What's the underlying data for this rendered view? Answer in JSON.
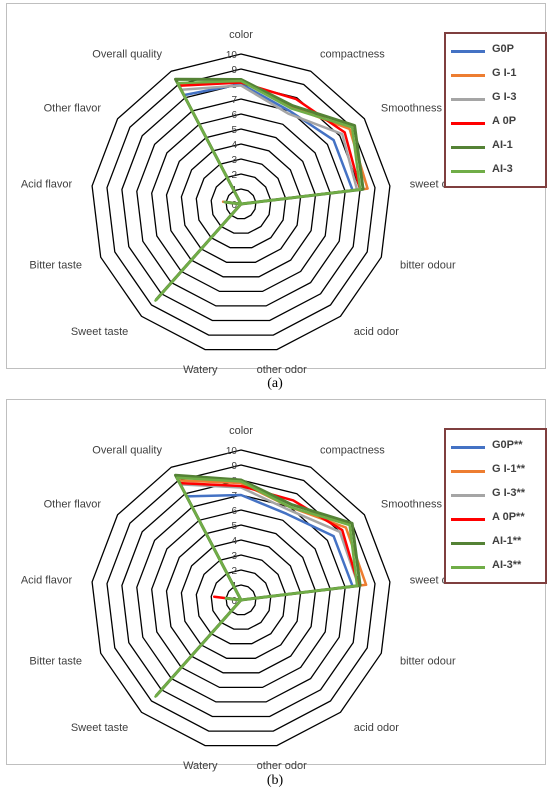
{
  "chart_data": [
    {
      "type": "radar",
      "panel_label": "(a)",
      "categories": [
        "color",
        "compactness",
        "Smoothness",
        "sweet odor",
        "bitter odour",
        "acid odor",
        "other odor",
        "Watery",
        "Sweet taste",
        "Bitter taste",
        "Acid flavor",
        "Other flavor",
        "Overall quality"
      ],
      "ticks": [
        "0",
        "1",
        "2",
        "3",
        "4",
        "5",
        "6",
        "7",
        "8",
        "9",
        "10"
      ],
      "rlim": [
        0,
        10
      ],
      "legend_position": "right",
      "series": [
        {
          "name": "G0P",
          "color": "#4472c4",
          "values": [
            8.0,
            7.0,
            7.5,
            7.5,
            0,
            0,
            0,
            0,
            8.2,
            0,
            1.0,
            0,
            8.2
          ]
        },
        {
          "name": "G I-1",
          "color": "#ed7d31",
          "values": [
            8.2,
            7.3,
            8.8,
            8.5,
            0,
            0,
            0,
            0,
            8.4,
            0,
            1.2,
            0,
            9.0
          ]
        },
        {
          "name": "G I-3",
          "color": "#a5a5a5",
          "values": [
            7.9,
            6.8,
            8.2,
            7.8,
            0,
            0,
            0,
            0,
            8.3,
            0,
            1.1,
            0,
            8.6
          ]
        },
        {
          "name": "A 0P",
          "color": "#ff0000",
          "values": [
            8.1,
            7.9,
            8.4,
            8.0,
            0,
            0,
            0,
            0,
            8.3,
            0,
            1.0,
            0,
            8.9
          ]
        },
        {
          "name": "AI-1",
          "color": "#548235",
          "values": [
            8.3,
            7.4,
            9.2,
            8.2,
            0,
            0,
            0,
            0,
            8.5,
            0,
            1.0,
            0,
            9.4
          ]
        },
        {
          "name": "AI-3",
          "color": "#70ad47",
          "values": [
            8.2,
            7.2,
            9.0,
            8.0,
            0,
            0,
            0,
            0,
            8.6,
            0,
            1.1,
            0,
            9.1
          ]
        }
      ]
    },
    {
      "type": "radar",
      "panel_label": "(b)",
      "categories": [
        "color",
        "compactness",
        "Smoothness",
        "sweet odor",
        "bitter odour",
        "acid odor",
        "other odor",
        "Watery",
        "Sweet taste",
        "Bitter taste",
        "Acid flavor",
        "Other flavor",
        "Overall quality"
      ],
      "ticks": [
        "0",
        "1",
        "2",
        "3",
        "4",
        "5",
        "6",
        "7",
        "8",
        "9",
        "10"
      ],
      "rlim": [
        0,
        10
      ],
      "legend_position": "right",
      "series": [
        {
          "name": "G0P**",
          "color": "#4472c4",
          "values": [
            7.0,
            6.5,
            7.5,
            7.5,
            0,
            0,
            0,
            0,
            8.0,
            0,
            1.0,
            0,
            7.8
          ]
        },
        {
          "name": "G I-1**",
          "color": "#ed7d31",
          "values": [
            7.8,
            7.0,
            8.5,
            8.4,
            0,
            0,
            0,
            0,
            8.3,
            0,
            1.0,
            0,
            9.0
          ]
        },
        {
          "name": "G I-3**",
          "color": "#a5a5a5",
          "values": [
            7.5,
            6.8,
            8.0,
            7.9,
            0,
            0,
            0,
            0,
            8.2,
            0,
            1.0,
            0,
            8.7
          ]
        },
        {
          "name": "A 0P**",
          "color": "#ff0000",
          "values": [
            7.6,
            7.5,
            8.2,
            7.9,
            0,
            0,
            0,
            0,
            8.1,
            0,
            1.8,
            0,
            8.8
          ]
        },
        {
          "name": "AI-1**",
          "color": "#548235",
          "values": [
            8.0,
            7.2,
            9.0,
            8.0,
            0,
            0,
            0,
            0,
            8.5,
            0,
            1.0,
            0,
            9.4
          ]
        },
        {
          "name": "AI-3**",
          "color": "#70ad47",
          "values": [
            7.9,
            7.0,
            8.8,
            7.8,
            0,
            0,
            0,
            0,
            8.6,
            0,
            1.0,
            0,
            9.2
          ]
        }
      ]
    }
  ]
}
